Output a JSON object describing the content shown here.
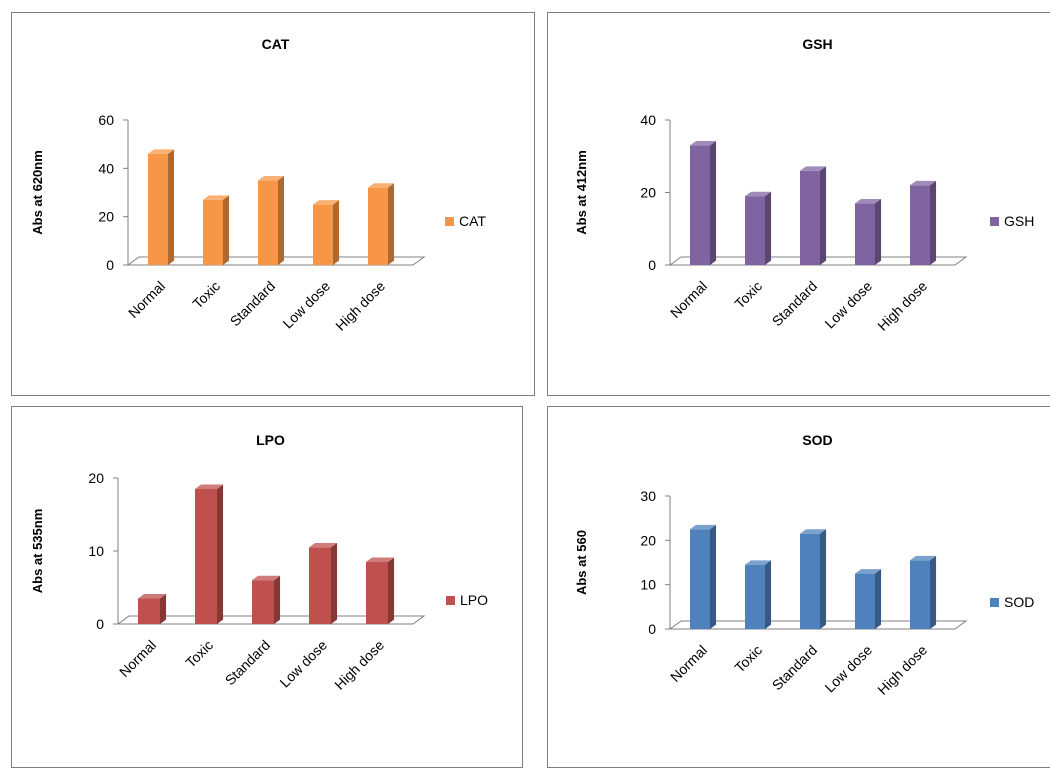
{
  "chart_data": [
    {
      "type": "bar",
      "title": "CAT",
      "ylabel": "Abs at 620nm",
      "xlabel": "",
      "categories": [
        "Normal",
        "Toxic",
        "Standard",
        "Low dose",
        "High dose"
      ],
      "series": [
        {
          "name": "CAT",
          "values": [
            46,
            27,
            35,
            25,
            32
          ]
        }
      ],
      "ylim": [
        0,
        60
      ],
      "yticks": [
        0,
        20,
        40,
        60
      ],
      "color": "#F79646",
      "legend": "right",
      "grid": false
    },
    {
      "type": "bar",
      "title": "GSH",
      "ylabel": "Abs at 412nm",
      "xlabel": "",
      "categories": [
        "Normal",
        "Toxic",
        "Standard",
        "Low dose",
        "High dose"
      ],
      "series": [
        {
          "name": "GSH",
          "values": [
            33,
            19,
            26,
            17,
            22
          ]
        }
      ],
      "ylim": [
        0,
        40
      ],
      "yticks": [
        0,
        20,
        40
      ],
      "color": "#8064A2",
      "legend": "right",
      "grid": false
    },
    {
      "type": "bar",
      "title": "LPO",
      "ylabel": "Abs at 535nm",
      "xlabel": "",
      "categories": [
        "Normal",
        "Toxic",
        "Standard",
        "Low dose",
        "High dose"
      ],
      "series": [
        {
          "name": "LPO",
          "values": [
            3.5,
            18.5,
            6,
            10.5,
            8.5
          ]
        }
      ],
      "ylim": [
        0,
        20
      ],
      "yticks": [
        0,
        10,
        20
      ],
      "color": "#C0504D",
      "legend": "right",
      "grid": false
    },
    {
      "type": "bar",
      "title": "SOD",
      "ylabel": "Abs at 560",
      "xlabel": "",
      "categories": [
        "Normal",
        "Toxic",
        "Standard",
        "Low dose",
        "High dose"
      ],
      "series": [
        {
          "name": "SOD",
          "values": [
            22.5,
            14.5,
            21.5,
            12.5,
            15.5
          ]
        }
      ],
      "ylim": [
        0,
        30
      ],
      "yticks": [
        0,
        10,
        20,
        30
      ],
      "color": "#4F81BD",
      "legend": "right",
      "grid": false
    }
  ]
}
